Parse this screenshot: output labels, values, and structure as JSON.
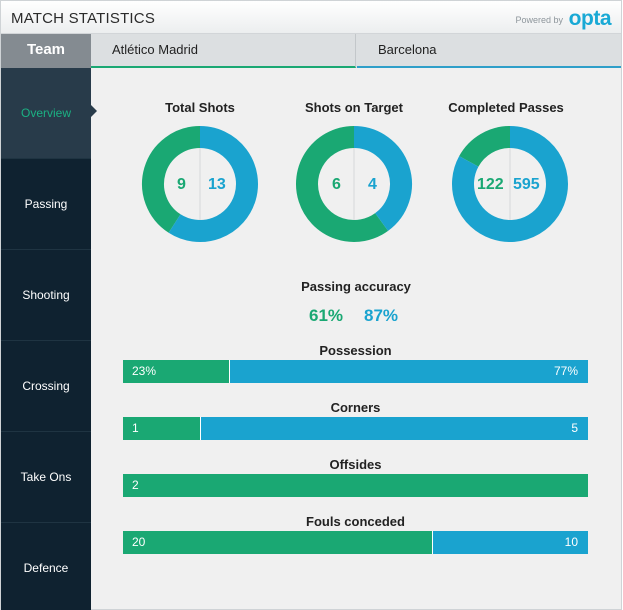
{
  "header": {
    "title": "MATCH STATISTICS",
    "powered_by": "Powered by",
    "logo_text": "opta"
  },
  "team_row": {
    "label": "Team",
    "team_a": "Atlético Madrid",
    "team_b": "Barcelona"
  },
  "colors": {
    "team_a": "#1aa873",
    "team_b": "#1aa3cf",
    "sidebar": "#0f2230",
    "sidebar_active": "#283b4a"
  },
  "sidebar": {
    "items": [
      {
        "label": "Overview",
        "active": true
      },
      {
        "label": "Passing",
        "active": false
      },
      {
        "label": "Shooting",
        "active": false
      },
      {
        "label": "Crossing",
        "active": false
      },
      {
        "label": "Take Ons",
        "active": false
      },
      {
        "label": "Defence",
        "active": false
      }
    ]
  },
  "chart_data": [
    {
      "type": "pie",
      "title": "Total Shots",
      "categories": [
        "Atlético Madrid",
        "Barcelona"
      ],
      "values": [
        9,
        13
      ]
    },
    {
      "type": "pie",
      "title": "Shots on Target",
      "categories": [
        "Atlético Madrid",
        "Barcelona"
      ],
      "values": [
        6,
        4
      ]
    },
    {
      "type": "pie",
      "title": "Completed Passes",
      "categories": [
        "Atlético Madrid",
        "Barcelona"
      ],
      "values": [
        122,
        595
      ]
    },
    {
      "type": "bar",
      "title": "Possession",
      "categories": [
        "Atlético Madrid",
        "Barcelona"
      ],
      "values": [
        23,
        77
      ],
      "labels": [
        "23%",
        "77%"
      ]
    },
    {
      "type": "bar",
      "title": "Corners",
      "categories": [
        "Atlético Madrid",
        "Barcelona"
      ],
      "values": [
        1,
        5
      ],
      "labels": [
        "1",
        "5"
      ]
    },
    {
      "type": "bar",
      "title": "Offsides",
      "categories": [
        "Atlético Madrid",
        "Barcelona"
      ],
      "values": [
        2,
        0
      ],
      "labels": [
        "2",
        ""
      ]
    },
    {
      "type": "bar",
      "title": "Fouls conceded",
      "categories": [
        "Atlético Madrid",
        "Barcelona"
      ],
      "values": [
        20,
        10
      ],
      "labels": [
        "20",
        "10"
      ]
    }
  ],
  "passing_accuracy": {
    "title": "Passing accuracy",
    "team_a": "61%",
    "team_b": "87%"
  }
}
